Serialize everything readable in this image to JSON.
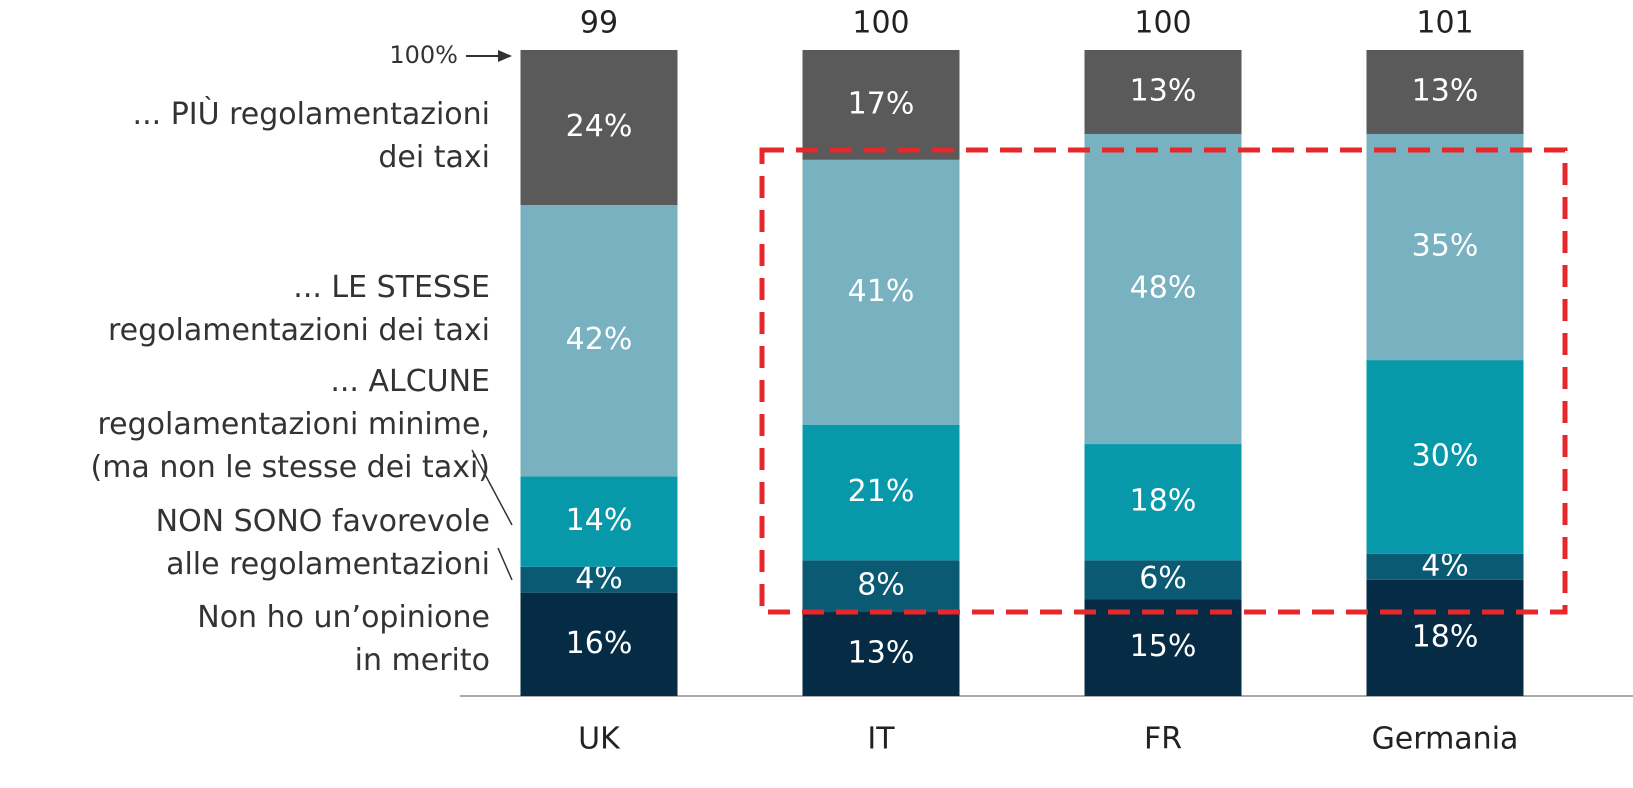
{
  "chart_data": {
    "type": "stacked_bar",
    "categories": [
      "UK",
      "IT",
      "FR",
      "Germania"
    ],
    "totals": [
      99,
      100,
      100,
      101
    ],
    "annotation": "100%",
    "ylim": [
      0,
      100
    ],
    "series": [
      {
        "name": "Non ho un’opinione\nin merito",
        "color": "#062b44",
        "values": [
          16,
          13,
          15,
          18
        ],
        "value_labels": [
          "16%",
          "13%",
          "15%",
          "18%"
        ]
      },
      {
        "name": "NON SONO favorevole\nalle regolamentazioni",
        "color": "#0b5a73",
        "values": [
          4,
          8,
          6,
          4
        ],
        "value_labels": [
          "4%",
          "8%",
          "6%",
          "4%"
        ]
      },
      {
        "name": "... ALCUNE\nregolamentazioni minime,\n(ma non le stesse dei taxi)",
        "color": "#0798a9",
        "values": [
          14,
          21,
          18,
          30
        ],
        "value_labels": [
          "14%",
          "21%",
          "18%",
          "30%"
        ]
      },
      {
        "name": "... LE STESSE\nregolamentazioni dei taxi",
        "color": "#78b1bf",
        "values": [
          42,
          41,
          48,
          35
        ],
        "value_labels": [
          "42%",
          "41%",
          "48%",
          "35%"
        ]
      },
      {
        "name": "... PIÙ regolamentazioni\ndei taxi",
        "color": "#5a5a5a",
        "values": [
          24,
          17,
          13,
          13
        ],
        "value_labels": [
          "24%",
          "17%",
          "13%",
          "13%"
        ]
      }
    ]
  }
}
